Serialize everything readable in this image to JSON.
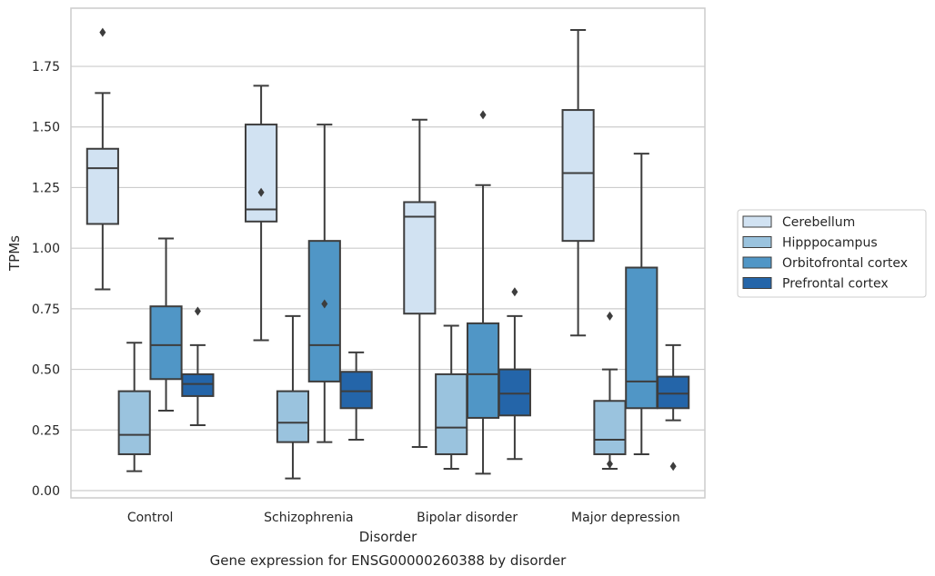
{
  "chart_data": {
    "type": "box",
    "xlabel": "Disorder",
    "ylabel": "TPMs",
    "caption": "Gene expression for ENSG00000260388 by disorder",
    "ylim": [
      -0.03,
      1.99
    ],
    "yticks": [
      "0.00",
      "0.25",
      "0.50",
      "0.75",
      "1.00",
      "1.25",
      "1.50",
      "1.75"
    ],
    "ytick_values": [
      0,
      0.25,
      0.5,
      0.75,
      1.0,
      1.25,
      1.5,
      1.75
    ],
    "grid": "horizontal",
    "legend_position": "right",
    "categories": [
      "Control",
      "Schizophrenia",
      "Bipolar disorder",
      "Major depression"
    ],
    "series": [
      {
        "name": "Cerebellum",
        "color": "#d1e2f2",
        "boxes": [
          {
            "whisker_low": 0.83,
            "q1": 1.1,
            "median": 1.33,
            "q3": 1.41,
            "whisker_high": 1.64,
            "outliers": [
              1.89
            ]
          },
          {
            "whisker_low": 0.62,
            "q1": 1.11,
            "median": 1.16,
            "q3": 1.51,
            "whisker_high": 1.67,
            "outliers": [
              1.23
            ]
          },
          {
            "whisker_low": 0.18,
            "q1": 0.73,
            "median": 1.13,
            "q3": 1.19,
            "whisker_high": 1.53,
            "outliers": []
          },
          {
            "whisker_low": 0.64,
            "q1": 1.03,
            "median": 1.31,
            "q3": 1.57,
            "whisker_high": 1.9,
            "outliers": []
          }
        ]
      },
      {
        "name": "Hipppocampus",
        "color": "#9ac3de",
        "boxes": [
          {
            "whisker_low": 0.08,
            "q1": 0.15,
            "median": 0.23,
            "q3": 0.41,
            "whisker_high": 0.61,
            "outliers": []
          },
          {
            "whisker_low": 0.05,
            "q1": 0.2,
            "median": 0.28,
            "q3": 0.41,
            "whisker_high": 0.72,
            "outliers": []
          },
          {
            "whisker_low": 0.09,
            "q1": 0.15,
            "median": 0.26,
            "q3": 0.48,
            "whisker_high": 0.68,
            "outliers": []
          },
          {
            "whisker_low": 0.09,
            "q1": 0.15,
            "median": 0.21,
            "q3": 0.37,
            "whisker_high": 0.5,
            "outliers": [
              0.11,
              0.72
            ]
          }
        ]
      },
      {
        "name": "Orbitofrontal cortex",
        "color": "#5096c6",
        "boxes": [
          {
            "whisker_low": 0.33,
            "q1": 0.46,
            "median": 0.6,
            "q3": 0.76,
            "whisker_high": 1.04,
            "outliers": []
          },
          {
            "whisker_low": 0.2,
            "q1": 0.45,
            "median": 0.6,
            "q3": 1.03,
            "whisker_high": 1.51,
            "outliers": [
              0.77
            ]
          },
          {
            "whisker_low": 0.07,
            "q1": 0.3,
            "median": 0.48,
            "q3": 0.69,
            "whisker_high": 1.26,
            "outliers": [
              1.55
            ]
          },
          {
            "whisker_low": 0.15,
            "q1": 0.34,
            "median": 0.45,
            "q3": 0.92,
            "whisker_high": 1.39,
            "outliers": []
          }
        ]
      },
      {
        "name": "Prefrontal cortex",
        "color": "#2465a9",
        "boxes": [
          {
            "whisker_low": 0.27,
            "q1": 0.39,
            "median": 0.44,
            "q3": 0.48,
            "whisker_high": 0.6,
            "outliers": [
              0.74
            ]
          },
          {
            "whisker_low": 0.21,
            "q1": 0.34,
            "median": 0.41,
            "q3": 0.49,
            "whisker_high": 0.57,
            "outliers": []
          },
          {
            "whisker_low": 0.13,
            "q1": 0.31,
            "median": 0.4,
            "q3": 0.5,
            "whisker_high": 0.72,
            "outliers": [
              0.82
            ]
          },
          {
            "whisker_low": 0.29,
            "q1": 0.34,
            "median": 0.4,
            "q3": 0.47,
            "whisker_high": 0.6,
            "outliers": [
              0.1
            ]
          }
        ]
      }
    ]
  }
}
